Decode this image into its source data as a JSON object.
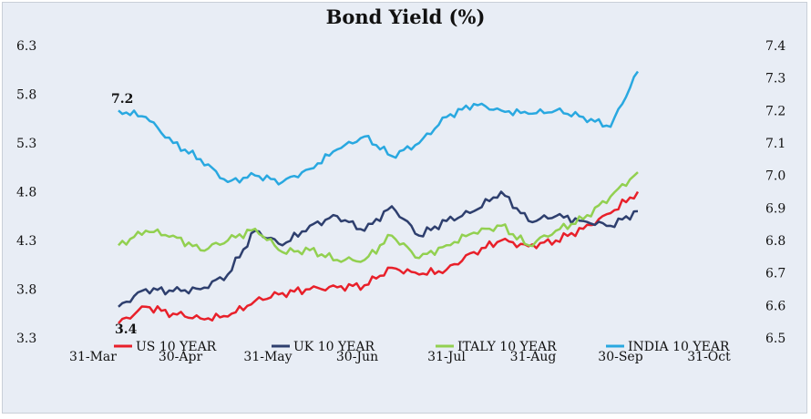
{
  "chart_data": {
    "type": "line",
    "title": "Bond Yield (%)",
    "xlabel": "",
    "ylabel": "",
    "x_ticks": [
      "31-Mar",
      "30-Apr",
      "31-May",
      "30-Jun",
      "31-Jul",
      "31-Aug",
      "30-Sep",
      "31-Oct"
    ],
    "y_left": {
      "ticks": [
        "3.3",
        "3.8",
        "4.3",
        "4.8",
        "5.3",
        "5.8",
        "6.3"
      ],
      "ylim": [
        3.3,
        6.3
      ]
    },
    "y_right": {
      "ticks": [
        "6.5",
        "6.6",
        "6.7",
        "6.8",
        "6.9",
        "7.0",
        "7.1",
        "7.2",
        "7.3",
        "7.4"
      ],
      "ylim": [
        6.5,
        7.4
      ]
    },
    "grid": false,
    "legend": "bottom",
    "annotations": [
      {
        "text": "7.2",
        "series": "INDIA 10 YEAR"
      },
      {
        "text": "3.4",
        "series": "US 10 YEAR"
      }
    ],
    "x": [
      "31-Mar",
      "10-Apr",
      "20-Apr",
      "30-Apr",
      "10-May",
      "20-May",
      "31-May",
      "10-Jun",
      "20-Jun",
      "30-Jun",
      "10-Jul",
      "20-Jul",
      "31-Jul",
      "10-Aug",
      "20-Aug",
      "31-Aug",
      "10-Sep",
      "20-Sep",
      "30-Sep",
      "7-Oct"
    ],
    "series": [
      {
        "name": "US 10 YEAR",
        "color": "#e8202a",
        "axis": "left",
        "values": [
          3.45,
          3.62,
          3.55,
          3.5,
          3.52,
          3.68,
          3.76,
          3.8,
          3.82,
          3.84,
          4.02,
          3.95,
          4.0,
          4.18,
          4.3,
          4.24,
          4.3,
          4.42,
          4.58,
          4.8
        ]
      },
      {
        "name": "UK 10 YEAR",
        "color": "#2e3f6e",
        "axis": "left",
        "values": [
          3.62,
          3.8,
          3.78,
          3.8,
          3.95,
          4.4,
          4.25,
          4.45,
          4.55,
          4.4,
          4.65,
          4.35,
          4.5,
          4.6,
          4.8,
          4.5,
          4.55,
          4.5,
          4.45,
          4.6
        ]
      },
      {
        "name": "ITALY 10 YEAR",
        "color": "#92d050",
        "axis": "left",
        "values": [
          4.25,
          4.4,
          4.35,
          4.2,
          4.3,
          4.42,
          4.18,
          4.2,
          4.1,
          4.1,
          4.35,
          4.12,
          4.25,
          4.38,
          4.45,
          4.25,
          4.4,
          4.52,
          4.75,
          5.0
        ]
      },
      {
        "name": "INDIA 10 YEAR",
        "color": "#29a8e0",
        "axis": "right",
        "values": [
          7.2,
          7.18,
          7.1,
          7.05,
          6.98,
          7.0,
          6.98,
          7.02,
          7.08,
          7.12,
          7.06,
          7.1,
          7.18,
          7.22,
          7.2,
          7.19,
          7.2,
          7.18,
          7.15,
          7.32
        ]
      }
    ]
  }
}
